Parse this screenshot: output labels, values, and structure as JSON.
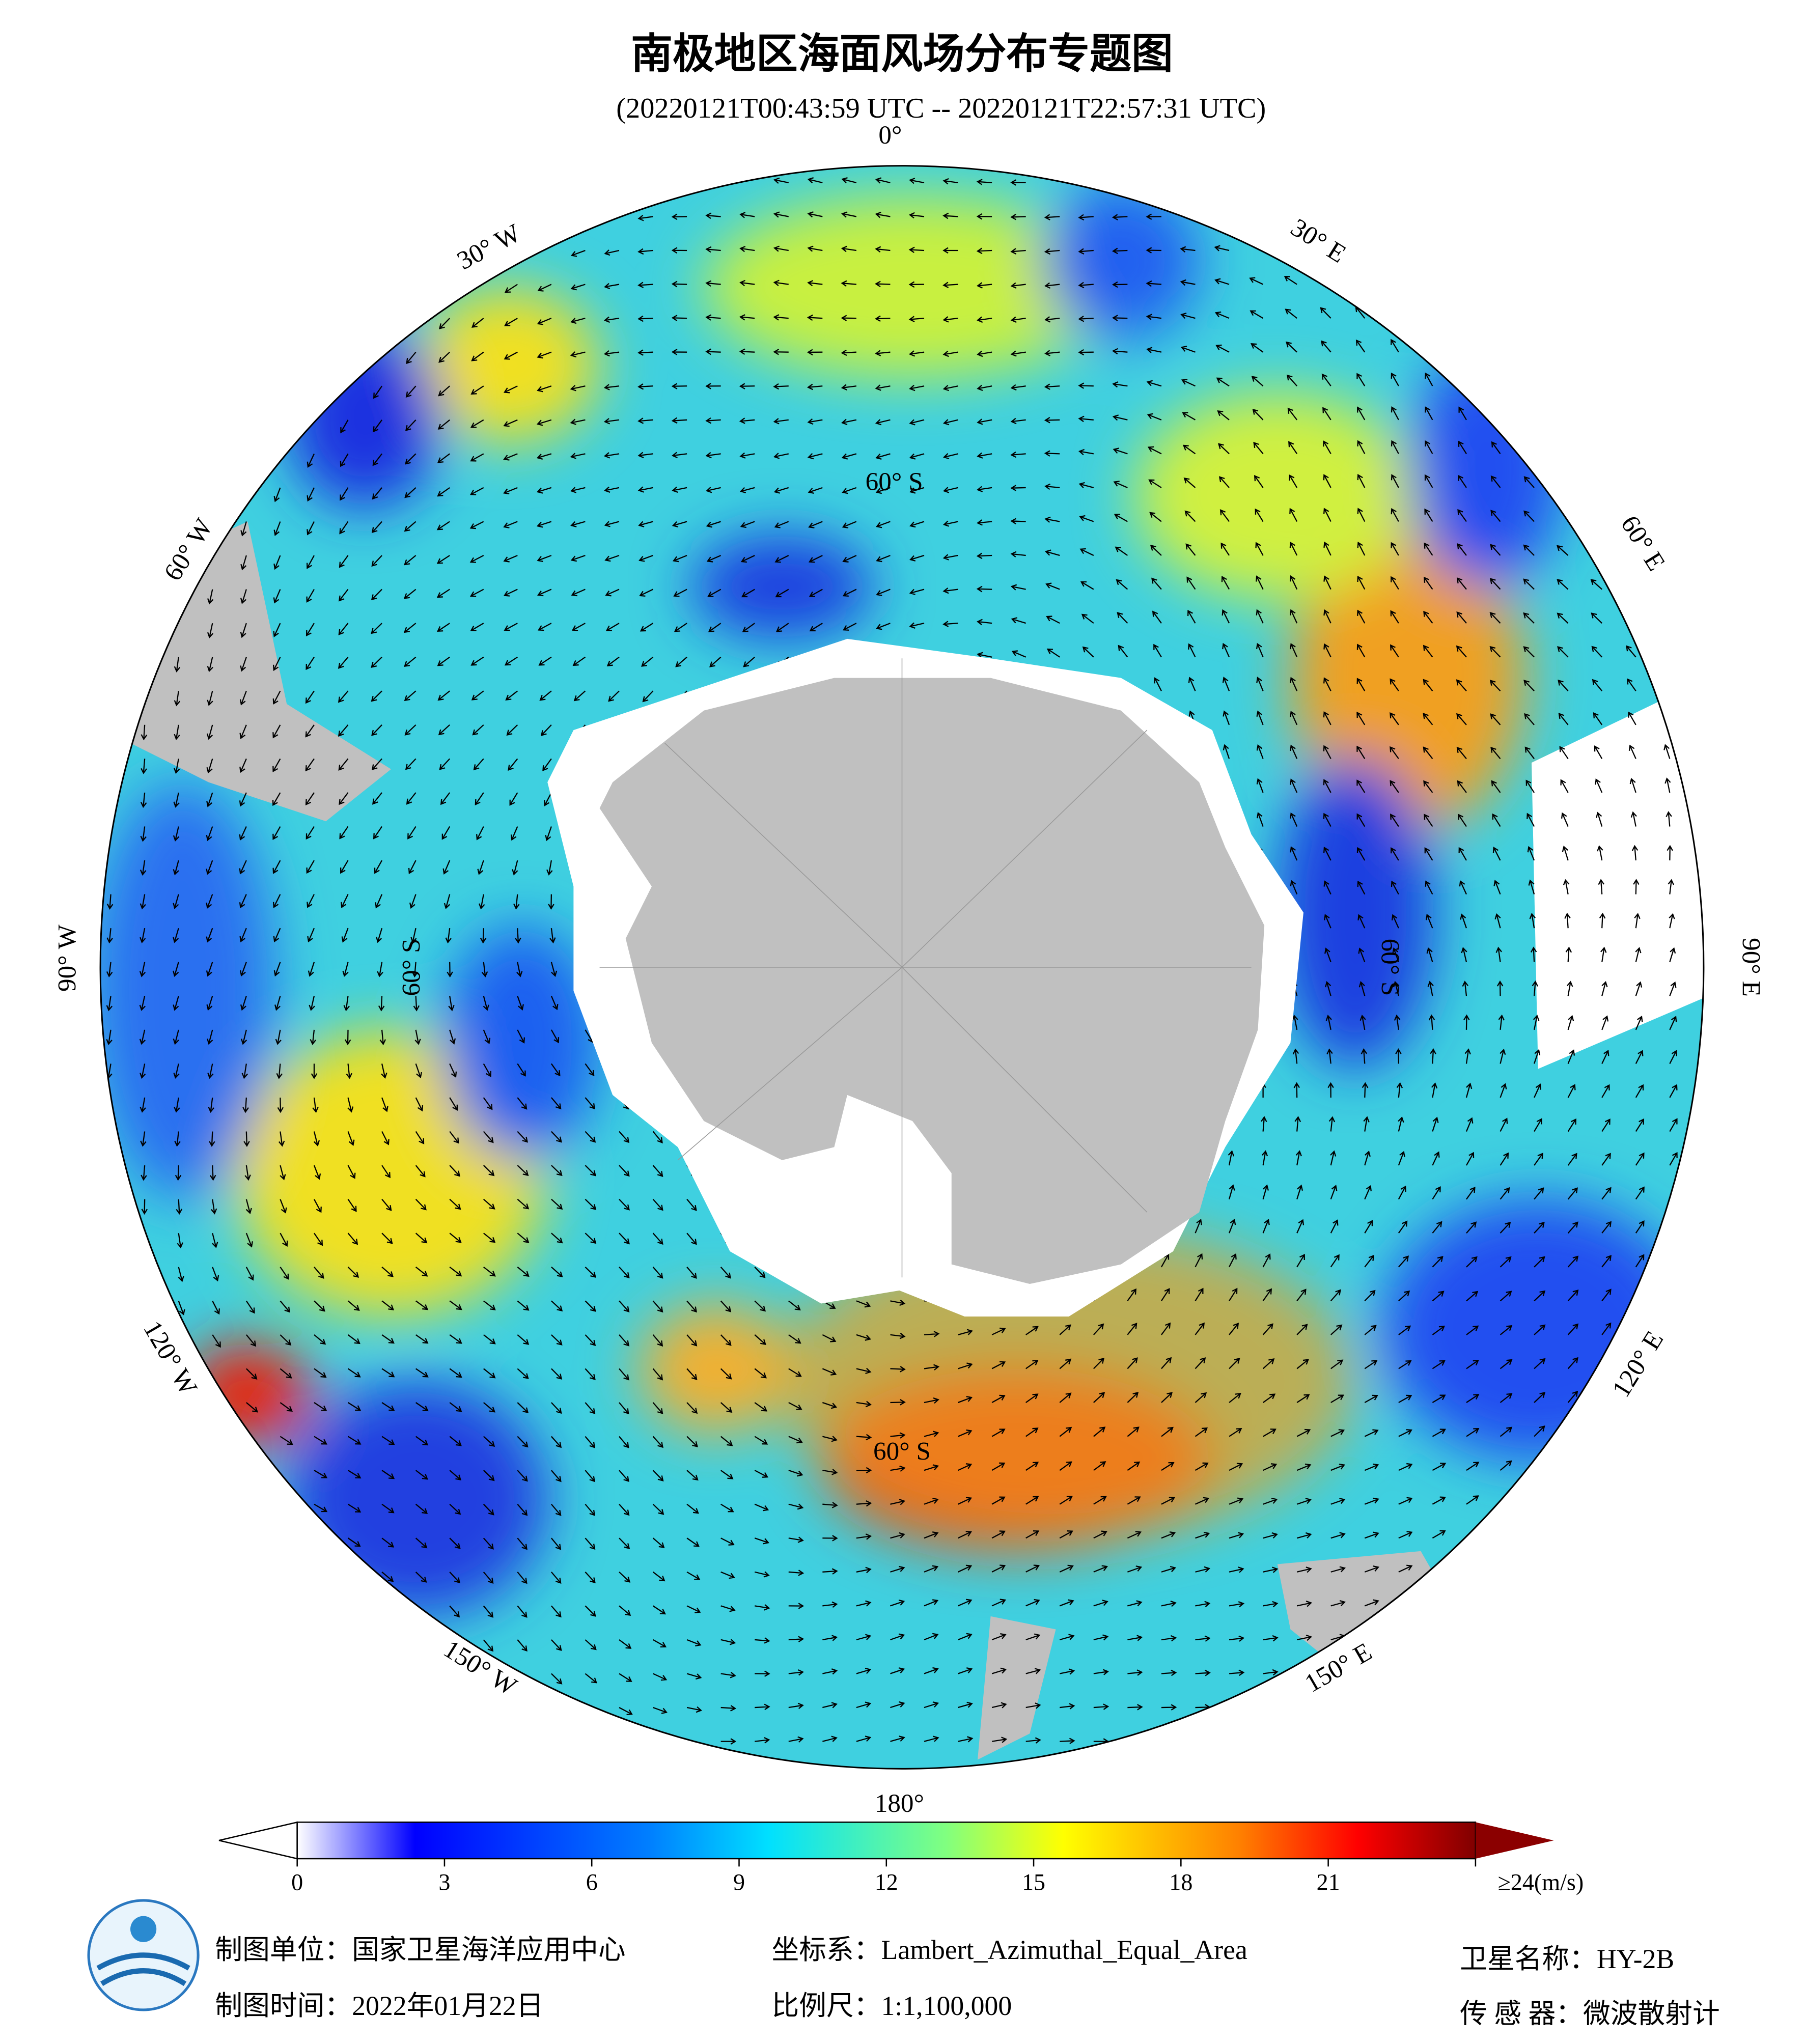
{
  "header": {
    "title": "南极地区海面风场分布专题图",
    "subtitle": "(20220121T00:43:59 UTC -- 20220121T22:57:31 UTC)"
  },
  "map": {
    "lon_labels": [
      "0°",
      "30° E",
      "60° E",
      "90° E",
      "120° E",
      "150° E",
      "180°",
      "150° W",
      "120° W",
      "90° W",
      "60° W",
      "30° W"
    ],
    "lat_labels": [
      "60° S",
      "60° S",
      "60° S",
      "60° S"
    ]
  },
  "colorbar": {
    "range": [
      0,
      24
    ],
    "ticks": [
      0,
      3,
      6,
      9,
      12,
      15,
      18,
      21,
      {
        "value": 24,
        "label": "≥24(m/s)"
      }
    ]
  },
  "footer": {
    "unit": "制图单位：国家卫星海洋应用中心",
    "time": "制图时间：2022年01月22日",
    "crs": "坐标系：Lambert_Azimuthal_Equal_Area",
    "scale": "比例尺：1:1,100,000",
    "satellite": "卫星名称：HY-2B",
    "sensor": "传 感 器：微波散射计"
  }
}
